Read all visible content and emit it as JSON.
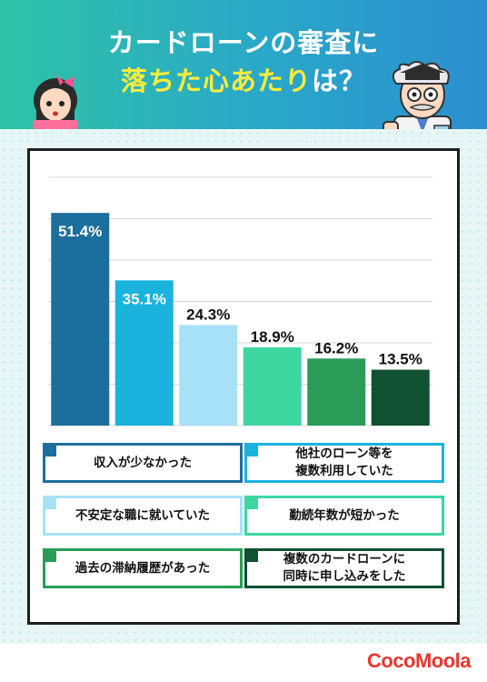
{
  "header": {
    "title_line1": "カードローンの審査に",
    "title_line2_highlight": "落ちた心あたり",
    "title_line2_rest": "は？"
  },
  "brand": "CocoMoola",
  "colors": {
    "header_gradient_start": "#2fc3a6",
    "header_gradient_end": "#2b8fd0",
    "title_highlight": "#ffec3a",
    "brand": "#e8372e"
  },
  "chart_data": {
    "type": "bar",
    "categories": [
      "収入が少なかった",
      "他社のローン等を\n複数利用していた",
      "不安定な職に就いていた",
      "勤続年数が短かった",
      "過去の滞納履歴があった",
      "複数のカードローンに\n同時に申し込みをした"
    ],
    "values": [
      51.4,
      35.1,
      24.3,
      18.9,
      16.2,
      13.5
    ],
    "value_labels": [
      "51.4%",
      "35.1%",
      "24.3%",
      "18.9%",
      "16.2%",
      "13.5%"
    ],
    "colors": [
      "#1c6f9c",
      "#1ab3dd",
      "#a7e1f7",
      "#3ed6a0",
      "#2a9c58",
      "#0f5130"
    ],
    "label_colors": [
      "#ffffff",
      "#ffffff",
      "#111111",
      "#111111",
      "#111111",
      "#111111"
    ],
    "ylim": [
      0,
      60
    ],
    "grid": true,
    "legend": "bottom",
    "title": "",
    "xlabel": "",
    "ylabel": ""
  },
  "characters": [
    {
      "name": "girl-character-icon"
    },
    {
      "name": "professor-character-icon"
    }
  ]
}
